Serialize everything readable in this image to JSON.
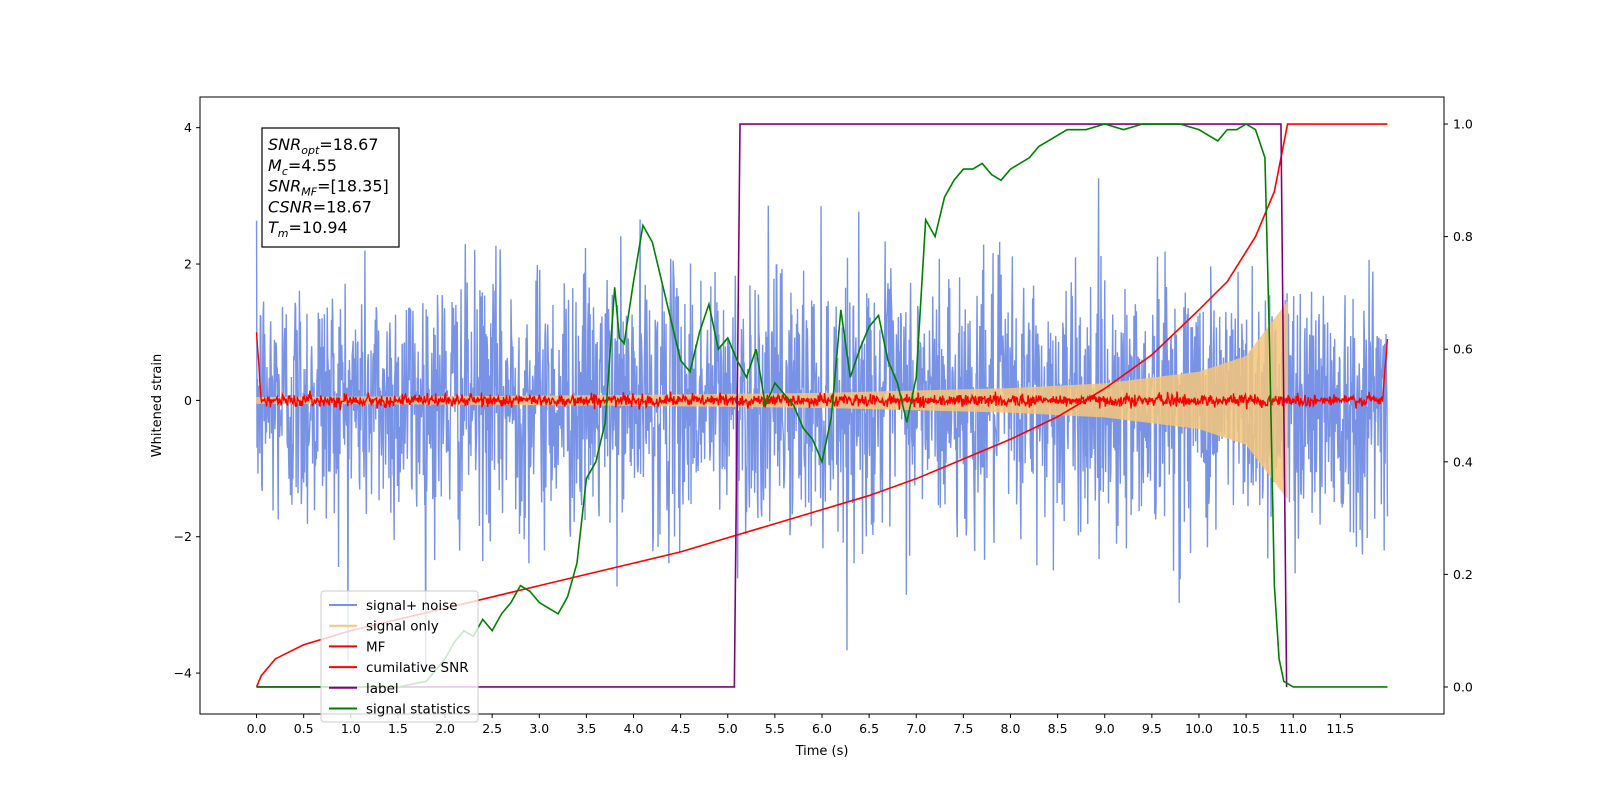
{
  "chart_data": {
    "type": "line",
    "xlabel": "Time (s)",
    "ylabel": "Whitened strain",
    "xlim": [
      -0.6,
      12.6
    ],
    "ylim": [
      -4.6,
      4.45
    ],
    "y2lim": [
      -0.048,
      1.048
    ],
    "x_ticks": [
      0.0,
      0.5,
      1.0,
      1.5,
      2.0,
      2.5,
      3.0,
      3.5,
      4.0,
      4.5,
      5.0,
      5.5,
      6.0,
      6.5,
      7.0,
      7.5,
      8.0,
      8.5,
      9.0,
      9.5,
      10.0,
      10.5,
      11.0,
      11.5
    ],
    "x_tick_labels": [
      "0.0",
      "0.5",
      "1.0",
      "1.5",
      "2.0",
      "2.5",
      "3.0",
      "3.5",
      "4.0",
      "4.5",
      "5.0",
      "5.5",
      "6.0",
      "6.5",
      "7.0",
      "7.5",
      "8.0",
      "8.5",
      "9.0",
      "9.5",
      "10.0",
      "10.5",
      "11.0",
      "11.5"
    ],
    "y_ticks": [
      -4,
      -2,
      0,
      2,
      4
    ],
    "y_tick_labels": [
      "−4",
      "−2",
      "0",
      "2",
      "4"
    ],
    "y2_ticks": [
      0.0,
      0.2,
      0.4,
      0.6,
      0.8,
      1.0
    ],
    "y2_tick_labels": [
      "0.0",
      "0.2",
      "0.4",
      "0.6",
      "0.8",
      "1.0"
    ],
    "grid": false,
    "legend_position": "lower-left",
    "annotation": {
      "lines": [
        {
          "var": "SNR",
          "sub": "opt",
          "value": "=18.67"
        },
        {
          "var": "M",
          "sub": "c",
          "value": "=4.55"
        },
        {
          "var": "SNR",
          "sub": "MF",
          "value": "=[18.35]"
        },
        {
          "var": "CSNR",
          "sub": "",
          "value": "=18.67"
        },
        {
          "var": "T",
          "sub": "m",
          "value": "=10.94"
        }
      ]
    },
    "series": [
      {
        "name": "signal+ noise",
        "axis": "left",
        "color": "#7893e6",
        "style": "noise",
        "x_range": [
          0.0,
          12.0
        ],
        "amplitude_std": 1.0,
        "min": -4.15,
        "max": 4.05
      },
      {
        "name": "signal only",
        "axis": "left",
        "color": "#f5c57a",
        "style": "chirp",
        "x_range": [
          0.0,
          10.94
        ],
        "envelope": [
          [
            0.0,
            0.05
          ],
          [
            2.0,
            0.06
          ],
          [
            4.0,
            0.08
          ],
          [
            6.0,
            0.11
          ],
          [
            8.0,
            0.18
          ],
          [
            9.0,
            0.25
          ],
          [
            10.0,
            0.42
          ],
          [
            10.5,
            0.65
          ],
          [
            10.94,
            1.45
          ]
        ]
      },
      {
        "name": "MF",
        "axis": "left",
        "color": "#ff0000",
        "style": "mf",
        "x_range": [
          0.0,
          12.0
        ],
        "start_value": 1.0,
        "end_value": 0.9
      },
      {
        "name": "cumilative SNR",
        "axis": "right",
        "color": "#ff0000",
        "style": "line",
        "x": [
          0.0,
          0.05,
          0.2,
          0.5,
          1.0,
          1.5,
          2.0,
          2.5,
          3.0,
          3.5,
          4.0,
          4.5,
          5.0,
          5.5,
          6.0,
          6.5,
          7.0,
          7.5,
          8.0,
          8.5,
          9.0,
          9.5,
          10.0,
          10.3,
          10.6,
          10.8,
          10.94,
          12.0
        ],
        "y": [
          0.0,
          0.02,
          0.05,
          0.075,
          0.1,
          0.12,
          0.14,
          0.16,
          0.18,
          0.2,
          0.22,
          0.24,
          0.265,
          0.29,
          0.315,
          0.34,
          0.37,
          0.405,
          0.44,
          0.48,
          0.53,
          0.59,
          0.67,
          0.72,
          0.8,
          0.88,
          1.0,
          1.0
        ]
      },
      {
        "name": "label",
        "axis": "right",
        "color": "#800080",
        "style": "line",
        "x": [
          0.0,
          5.07,
          5.13,
          10.87,
          10.93
        ],
        "y": [
          0.0,
          0.0,
          1.0,
          1.0,
          0.0
        ]
      },
      {
        "name": "signal statistics",
        "axis": "right",
        "color": "#008000",
        "style": "line",
        "x": [
          0.0,
          0.5,
          1.0,
          1.5,
          1.8,
          2.0,
          2.1,
          2.2,
          2.3,
          2.4,
          2.5,
          2.6,
          2.7,
          2.8,
          2.9,
          3.0,
          3.1,
          3.2,
          3.3,
          3.4,
          3.5,
          3.6,
          3.7,
          3.8,
          3.85,
          3.9,
          4.0,
          4.1,
          4.2,
          4.3,
          4.4,
          4.5,
          4.6,
          4.7,
          4.8,
          4.9,
          5.0,
          5.1,
          5.2,
          5.3,
          5.4,
          5.5,
          5.6,
          5.7,
          5.8,
          5.9,
          6.0,
          6.1,
          6.2,
          6.3,
          6.4,
          6.5,
          6.6,
          6.7,
          6.8,
          6.9,
          7.0,
          7.1,
          7.2,
          7.3,
          7.4,
          7.5,
          7.6,
          7.7,
          7.8,
          7.9,
          8.0,
          8.1,
          8.2,
          8.3,
          8.4,
          8.5,
          8.6,
          8.7,
          8.8,
          9.0,
          9.2,
          9.4,
          9.6,
          9.8,
          10.0,
          10.1,
          10.2,
          10.3,
          10.4,
          10.5,
          10.6,
          10.7,
          10.75,
          10.8,
          10.85,
          10.9,
          11.0,
          12.0
        ],
        "y": [
          0.0,
          0.0,
          0.0,
          0.0,
          0.01,
          0.05,
          0.08,
          0.1,
          0.09,
          0.12,
          0.1,
          0.13,
          0.15,
          0.18,
          0.17,
          0.15,
          0.14,
          0.13,
          0.16,
          0.22,
          0.37,
          0.4,
          0.47,
          0.71,
          0.62,
          0.61,
          0.72,
          0.82,
          0.79,
          0.72,
          0.65,
          0.58,
          0.56,
          0.63,
          0.68,
          0.6,
          0.62,
          0.58,
          0.55,
          0.6,
          0.5,
          0.54,
          0.52,
          0.5,
          0.46,
          0.44,
          0.4,
          0.48,
          0.67,
          0.55,
          0.6,
          0.64,
          0.66,
          0.58,
          0.54,
          0.47,
          0.55,
          0.83,
          0.8,
          0.87,
          0.9,
          0.92,
          0.92,
          0.93,
          0.91,
          0.9,
          0.92,
          0.93,
          0.94,
          0.96,
          0.97,
          0.98,
          0.99,
          0.99,
          0.99,
          1.0,
          0.99,
          1.0,
          1.0,
          1.0,
          0.99,
          0.98,
          0.97,
          0.99,
          0.99,
          1.0,
          0.99,
          0.94,
          0.6,
          0.18,
          0.05,
          0.01,
          0.0,
          0.0
        ]
      }
    ]
  }
}
